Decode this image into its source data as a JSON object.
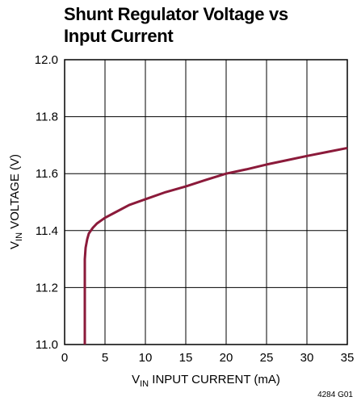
{
  "chart_data": {
    "type": "line",
    "title_line1": "Shunt Regulator Voltage vs",
    "title_line2": "Input Current",
    "xlabel_main": "V",
    "xlabel_sub": "IN",
    "xlabel_rest": " INPUT CURRENT (mA)",
    "ylabel_main": "V",
    "ylabel_sub": "IN",
    "ylabel_rest": " VOLTAGE (V)",
    "figure_id": "4284 G01",
    "xlim": [
      0,
      35
    ],
    "ylim": [
      11.0,
      12.0
    ],
    "x_ticks": [
      "0",
      "5",
      "10",
      "15",
      "20",
      "25",
      "30",
      "35"
    ],
    "y_ticks": [
      "11.0",
      "11.2",
      "11.4",
      "11.6",
      "11.8",
      "12.0"
    ],
    "grid": true,
    "line_color": "#8b1a3a",
    "series": [
      {
        "x": [
          2.5,
          2.5,
          2.5,
          2.6,
          2.8,
          3.0,
          3.5,
          4.0,
          5.0,
          6.0,
          8.0,
          10.0,
          12.5,
          15.0,
          17.5,
          20.0,
          22.5,
          25.0,
          27.5,
          30.0,
          32.5,
          35.0
        ],
        "y": [
          11.0,
          11.2,
          11.3,
          11.34,
          11.37,
          11.39,
          11.41,
          11.425,
          11.445,
          11.46,
          11.49,
          11.51,
          11.535,
          11.555,
          11.578,
          11.6,
          11.615,
          11.632,
          11.647,
          11.662,
          11.676,
          11.69
        ]
      }
    ]
  }
}
